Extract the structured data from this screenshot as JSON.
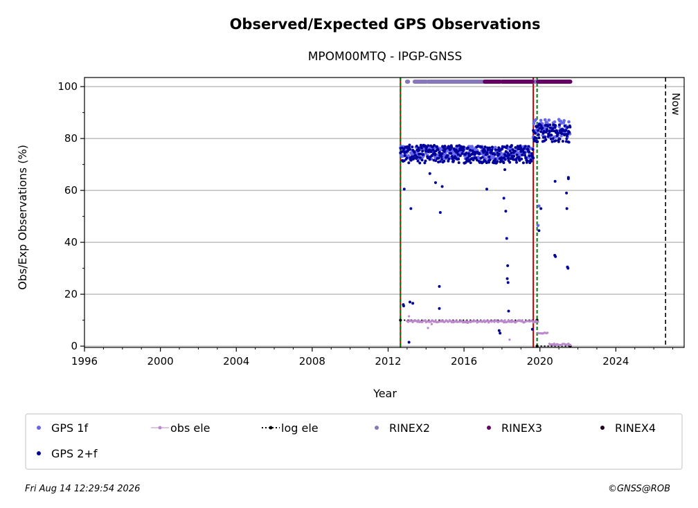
{
  "chart_data": {
    "type": "scatter",
    "title": "Observed/Expected GPS Observations",
    "subtitle": "MPOM00MTQ - IPGP-GNSS",
    "xlabel": "Year",
    "ylabel": "Obs/Exp Observations (%)",
    "xlim": [
      1996,
      2027.6
    ],
    "ylim": [
      -0.5,
      103.5
    ],
    "x_ticks": [
      "1996",
      "2000",
      "2004",
      "2008",
      "2012",
      "2016",
      "2020",
      "2024"
    ],
    "y_ticks": [
      "0",
      "20",
      "40",
      "60",
      "80",
      "100"
    ],
    "grid": "horizontal",
    "legend_position": "below",
    "now_label": "Now",
    "now_year": 2026.62,
    "vertical_lines": [
      {
        "x": 2012.65,
        "color": "#cc0000",
        "style": "solid"
      },
      {
        "x": 2012.65,
        "color": "#007700",
        "style": "dashed"
      },
      {
        "x": 2019.65,
        "color": "#cc0000",
        "style": "solid"
      },
      {
        "x": 2019.85,
        "color": "#007700",
        "style": "dashed"
      }
    ],
    "series": [
      {
        "name": "GPS 1f",
        "color": "#6666ee",
        "segments": [
          {
            "x0": 2012.65,
            "x1": 2019.65,
            "y": 74.5,
            "spread": 2.5
          },
          {
            "x0": 2019.65,
            "x1": 2021.6,
            "y": 84,
            "spread": 3.5
          }
        ],
        "outliers": [
          [
            2019.95,
            54
          ],
          [
            2019.9,
            46.5
          ]
        ]
      },
      {
        "name": "GPS 2+f",
        "color": "#000099",
        "segments": [
          {
            "x0": 2012.65,
            "x1": 2019.65,
            "y": 74,
            "spread": 3.5
          },
          {
            "x0": 2019.65,
            "x1": 2021.6,
            "y": 82,
            "spread": 3.5
          }
        ],
        "outliers": [
          [
            2012.8,
            16
          ],
          [
            2012.82,
            15.5
          ],
          [
            2012.85,
            60.5
          ],
          [
            2013.1,
            1.5
          ],
          [
            2013.15,
            17
          ],
          [
            2013.2,
            53
          ],
          [
            2013.3,
            16.5
          ],
          [
            2014.7,
            23
          ],
          [
            2014.75,
            51.5
          ],
          [
            2014.7,
            14.5
          ],
          [
            2014.85,
            61.5
          ],
          [
            2014.2,
            66.5
          ],
          [
            2014.5,
            63
          ],
          [
            2017.2,
            60.5
          ],
          [
            2017.85,
            6
          ],
          [
            2017.9,
            5
          ],
          [
            2018.2,
            52
          ],
          [
            2018.25,
            41.5
          ],
          [
            2018.1,
            57
          ],
          [
            2018.3,
            31
          ],
          [
            2018.28,
            26
          ],
          [
            2018.32,
            24.5
          ],
          [
            2018.35,
            13.5
          ],
          [
            2018.15,
            68
          ],
          [
            2019.6,
            6.5
          ],
          [
            2019.95,
            44.5
          ],
          [
            2020.05,
            53
          ],
          [
            2020.8,
            63.5
          ],
          [
            2020.78,
            35
          ],
          [
            2020.82,
            34.5
          ],
          [
            2021.4,
            59
          ],
          [
            2021.42,
            53
          ],
          [
            2021.5,
            64.5
          ],
          [
            2021.5,
            65
          ],
          [
            2021.45,
            30.5
          ],
          [
            2021.48,
            30
          ]
        ]
      },
      {
        "name": "obs ele",
        "color": "#bb88cc",
        "segments": [
          {
            "x0": 2013.0,
            "x1": 2019.9,
            "y": 9.5,
            "spread": 0.4
          },
          {
            "x0": 2019.9,
            "x1": 2020.4,
            "y": 5,
            "spread": 0.2
          },
          {
            "x0": 2020.5,
            "x1": 2021.6,
            "y": 0.7,
            "spread": 0.3
          }
        ],
        "outliers": [
          [
            2013.1,
            11.5
          ],
          [
            2014.1,
            7
          ],
          [
            2014.3,
            8.5
          ],
          [
            2016.2,
            9
          ],
          [
            2018.4,
            2.5
          ]
        ]
      },
      {
        "name": "log ele",
        "color": "#000000",
        "lines": [
          {
            "x0": 2012.65,
            "x1": 2019.85,
            "y": 10
          },
          {
            "x0": 2019.85,
            "x1": 2021.6,
            "y": 0
          }
        ]
      },
      {
        "name": "RINEX2",
        "color": "#8877bb",
        "ranges": [
          [
            2013.0,
            2013.05
          ],
          [
            2013.4,
            2014.0
          ],
          [
            2014.1,
            2017.1
          ],
          [
            2019.6,
            2019.9
          ]
        ]
      },
      {
        "name": "RINEX3",
        "color": "#660066",
        "ranges": [
          [
            2017.1,
            2017.9
          ],
          [
            2018.0,
            2019.6
          ],
          [
            2019.9,
            2021.6
          ]
        ]
      },
      {
        "name": "RINEX4",
        "color": "#220022",
        "ranges": []
      }
    ]
  },
  "footer": {
    "timestamp": "Fri Aug 14 12:29:54 2026",
    "credit": "©GNSS@ROB"
  }
}
